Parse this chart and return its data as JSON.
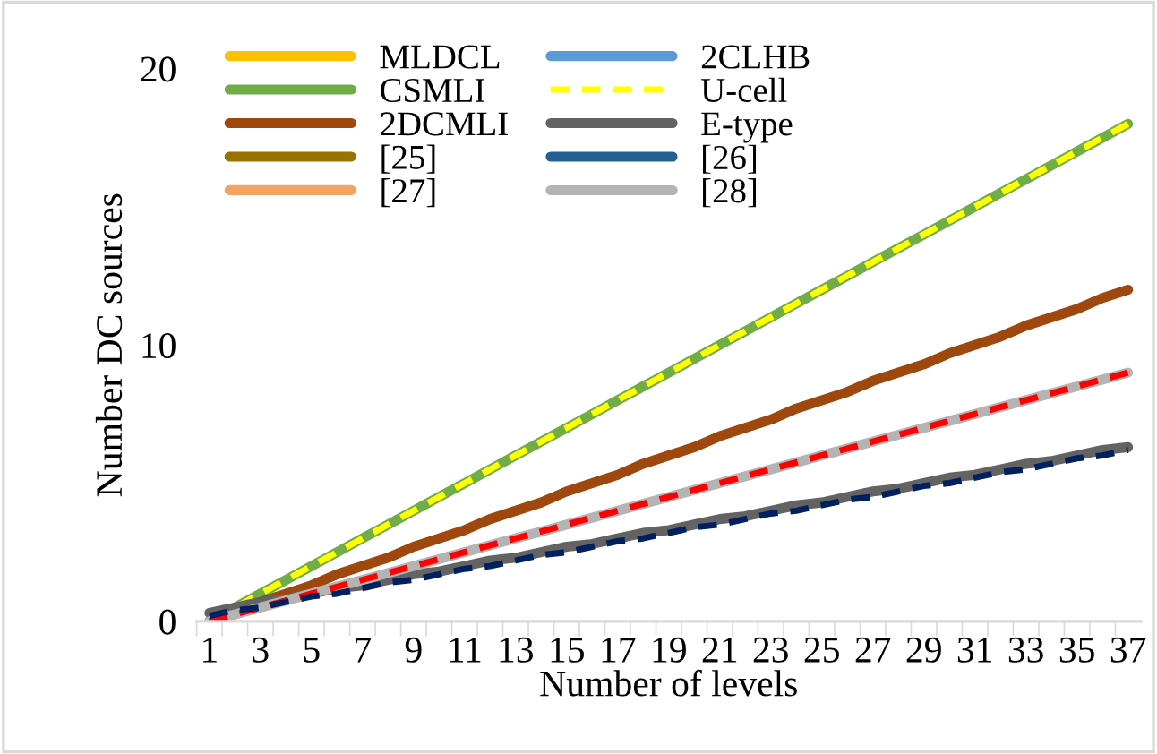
{
  "chart_data": {
    "type": "line",
    "xlabel": "Number of levels",
    "ylabel": "Number DC sources",
    "categories": [
      "1",
      null,
      "3",
      null,
      "5",
      null,
      "7",
      null,
      "9",
      null,
      "11",
      null,
      "13",
      null,
      "15",
      null,
      "17",
      null,
      "19",
      null,
      "21",
      null,
      "23",
      null,
      "25",
      null,
      "27",
      null,
      "29",
      null,
      "31",
      null,
      "33",
      null,
      "35",
      null,
      "37"
    ],
    "ylim": [
      0,
      20
    ],
    "yticks": [
      0,
      10,
      20
    ],
    "legend": "top left",
    "grid": false,
    "series": [
      {
        "name": "MLDCL",
        "color": "#ffc000",
        "line_style": "solid",
        "values": [
          null,
          null,
          null,
          null,
          null,
          null,
          null,
          null,
          null,
          null,
          null,
          null,
          null,
          null,
          null,
          null,
          null,
          null,
          null,
          null,
          null,
          null,
          null,
          null,
          null,
          null,
          null,
          null,
          null,
          null,
          null,
          null,
          null,
          null,
          null,
          null,
          null
        ]
      },
      {
        "name": "CSMLI",
        "color": "#70ad47",
        "line_style": "solid",
        "values": [
          0,
          0.5,
          1,
          1.5,
          2,
          2.5,
          3,
          3.5,
          4,
          4.5,
          5,
          5.5,
          6,
          6.5,
          7,
          7.5,
          8,
          8.5,
          9,
          9.5,
          10,
          10.5,
          11,
          11.5,
          12,
          12.5,
          13,
          13.5,
          14,
          14.5,
          15,
          15.5,
          16,
          16.5,
          17,
          17.5,
          18
        ]
      },
      {
        "name": "2DCMLI",
        "color": "#9e480e",
        "line_style": "solid",
        "values": [
          0,
          0.3,
          0.7,
          1,
          1.3,
          1.7,
          2,
          2.3,
          2.7,
          3,
          3.3,
          3.7,
          4,
          4.3,
          4.7,
          5,
          5.3,
          5.7,
          6,
          6.3,
          6.7,
          7,
          7.3,
          7.7,
          8,
          8.3,
          8.7,
          9,
          9.3,
          9.7,
          10,
          10.3,
          10.7,
          11,
          11.3,
          11.7,
          12
        ]
      },
      {
        "name": "[25]",
        "color": "#997300",
        "line_style": "solid",
        "values": [
          null,
          null,
          null,
          null,
          null,
          null,
          null,
          null,
          null,
          null,
          null,
          null,
          null,
          null,
          null,
          null,
          null,
          null,
          null,
          null,
          null,
          null,
          null,
          null,
          null,
          null,
          null,
          null,
          null,
          null,
          null,
          null,
          null,
          null,
          null,
          null,
          null
        ]
      },
      {
        "name": "[27]",
        "color": "#f4a460",
        "line_style": "solid",
        "values": [
          null,
          null,
          null,
          null,
          null,
          null,
          null,
          null,
          null,
          null,
          null,
          null,
          null,
          null,
          null,
          null,
          null,
          null,
          null,
          null,
          null,
          null,
          null,
          null,
          null,
          null,
          null,
          null,
          null,
          null,
          null,
          null,
          null,
          null,
          null,
          null,
          null
        ]
      },
      {
        "name": "2CLHB",
        "color": "#5b9bd5",
        "line_style": "solid",
        "values": [
          null,
          null,
          null,
          null,
          null,
          null,
          null,
          null,
          null,
          null,
          null,
          null,
          null,
          null,
          null,
          null,
          null,
          null,
          null,
          null,
          null,
          null,
          null,
          null,
          null,
          null,
          null,
          null,
          null,
          null,
          null,
          null,
          null,
          null,
          null,
          null,
          null
        ]
      },
      {
        "name": "U-cell",
        "color": "#ffff00",
        "line_style": "dashed",
        "values": [
          0,
          0.5,
          1,
          1.5,
          2,
          2.5,
          3,
          3.5,
          4,
          4.5,
          5,
          5.5,
          6,
          6.5,
          7,
          7.5,
          8,
          8.5,
          9,
          9.5,
          10,
          10.5,
          11,
          11.5,
          12,
          12.5,
          13,
          13.5,
          14,
          14.5,
          15,
          15.5,
          16,
          16.5,
          17,
          17.5,
          18
        ]
      },
      {
        "name": "E-type",
        "color": "#636363",
        "line_style": "solid",
        "values": [
          0.3,
          0.5,
          0.7,
          0.8,
          1,
          1.2,
          1.3,
          1.5,
          1.7,
          1.8,
          2,
          2.2,
          2.3,
          2.5,
          2.7,
          2.8,
          3,
          3.2,
          3.3,
          3.5,
          3.7,
          3.8,
          4,
          4.2,
          4.3,
          4.5,
          4.7,
          4.8,
          5,
          5.2,
          5.3,
          5.5,
          5.7,
          5.8,
          6,
          6.2,
          6.3
        ]
      },
      {
        "name": "[26]",
        "color": "#255e91",
        "line_style": "solid",
        "values": [
          null,
          null,
          null,
          null,
          null,
          null,
          null,
          null,
          null,
          null,
          null,
          null,
          null,
          null,
          null,
          null,
          null,
          null,
          null,
          null,
          null,
          null,
          null,
          null,
          null,
          null,
          null,
          null,
          null,
          null,
          null,
          null,
          null,
          null,
          null,
          null,
          null
        ]
      },
      {
        "name": "[28]",
        "color": "#b4b4b4",
        "line_style": "solid",
        "values": [
          0,
          0.25,
          0.5,
          0.75,
          1,
          1.25,
          1.5,
          1.75,
          2,
          2.25,
          2.5,
          2.75,
          3,
          3.25,
          3.5,
          3.75,
          4,
          4.25,
          4.5,
          4.75,
          5,
          5.25,
          5.5,
          5.75,
          6,
          6.25,
          6.5,
          6.75,
          7,
          7.25,
          7.5,
          7.75,
          8,
          8.25,
          8.5,
          8.75,
          9
        ]
      },
      {
        "color": "#ff0000",
        "line_style": "dashed",
        "values": [
          0,
          0.25,
          0.5,
          0.75,
          1,
          1.25,
          1.5,
          1.75,
          2,
          2.25,
          2.5,
          2.75,
          3,
          3.25,
          3.5,
          3.75,
          4,
          4.25,
          4.5,
          4.75,
          5,
          5.25,
          5.5,
          5.75,
          6,
          6.25,
          6.5,
          6.75,
          7,
          7.25,
          7.5,
          7.75,
          8,
          8.25,
          8.5,
          8.75,
          9
        ]
      },
      {
        "color": "#002060",
        "line_style": "dashed",
        "values": [
          0.2,
          0.4,
          0.5,
          0.7,
          0.9,
          1,
          1.2,
          1.4,
          1.5,
          1.7,
          1.9,
          2,
          2.2,
          2.4,
          2.5,
          2.7,
          2.9,
          3,
          3.2,
          3.4,
          3.5,
          3.7,
          3.9,
          4,
          4.2,
          4.4,
          4.5,
          4.7,
          4.9,
          5,
          5.2,
          5.4,
          5.5,
          5.7,
          5.9,
          6,
          6.2
        ]
      }
    ]
  }
}
